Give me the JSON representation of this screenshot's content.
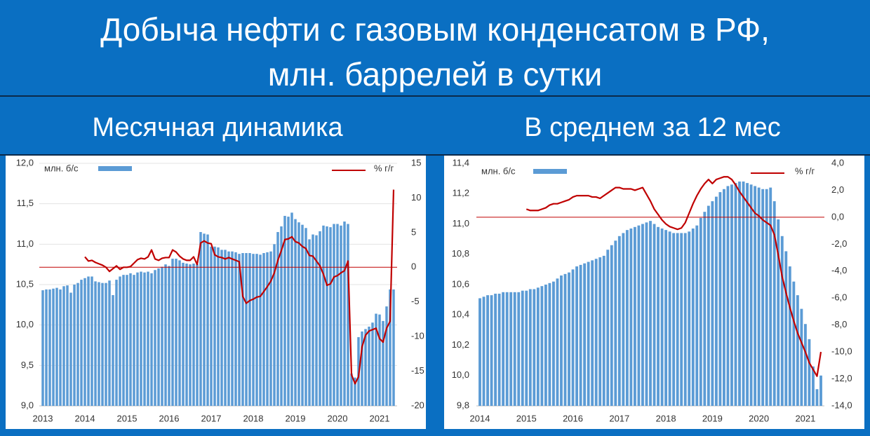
{
  "header": {
    "title_lines": [
      "Добыча нефти с газовым конденсатом в РФ,",
      "млн. баррелей в сутки"
    ]
  },
  "chart_data": [
    {
      "type": "bar",
      "title": "Месячная динамика",
      "grid": true,
      "zero_line": true,
      "categories": [
        "2013",
        null,
        null,
        null,
        null,
        null,
        null,
        null,
        null,
        null,
        null,
        null,
        "2014",
        null,
        null,
        null,
        null,
        null,
        null,
        null,
        null,
        null,
        null,
        null,
        "2015",
        null,
        null,
        null,
        null,
        null,
        null,
        null,
        null,
        null,
        null,
        null,
        "2016",
        null,
        null,
        null,
        null,
        null,
        null,
        null,
        null,
        null,
        null,
        null,
        "2017",
        null,
        null,
        null,
        null,
        null,
        null,
        null,
        null,
        null,
        null,
        null,
        "2018",
        null,
        null,
        null,
        null,
        null,
        null,
        null,
        null,
        null,
        null,
        null,
        "2019",
        null,
        null,
        null,
        null,
        null,
        null,
        null,
        null,
        null,
        null,
        null,
        "2020",
        null,
        null,
        null,
        null,
        null,
        null,
        null,
        null,
        null,
        null,
        null,
        "2021",
        null,
        null,
        null,
        null
      ],
      "ylim": [
        9,
        12
      ],
      "yticks": [
        {
          "value": 9,
          "label": "9,0"
        },
        {
          "value": 9.5,
          "label": "9,5"
        },
        {
          "value": 10,
          "label": "10,0"
        },
        {
          "value": 10.5,
          "label": "10,5"
        },
        {
          "value": 11,
          "label": "11,0"
        },
        {
          "value": 11.5,
          "label": "11,5"
        },
        {
          "value": 12,
          "label": "12,0"
        }
      ],
      "y2lim": [
        -20,
        15
      ],
      "y2ticks": [
        -20,
        -15,
        -10,
        -5,
        0,
        5,
        10,
        15
      ],
      "series": [
        {
          "name": "млн. б/с",
          "color": "#5b9bd5",
          "type": "bar",
          "values": [
            10.43,
            10.44,
            10.44,
            10.45,
            10.46,
            10.44,
            10.48,
            10.49,
            10.4,
            10.5,
            10.52,
            10.56,
            10.58,
            10.6,
            10.6,
            10.54,
            10.53,
            10.52,
            10.52,
            10.55,
            10.37,
            10.56,
            10.6,
            10.62,
            10.62,
            10.64,
            10.62,
            10.65,
            10.66,
            10.65,
            10.66,
            10.64,
            10.68,
            10.7,
            10.72,
            10.75,
            10.73,
            10.82,
            10.82,
            10.8,
            10.77,
            10.76,
            10.75,
            10.76,
            10.75,
            11.15,
            11.13,
            11.12,
            10.97,
            10.97,
            10.96,
            10.93,
            10.93,
            10.91,
            10.91,
            10.9,
            10.88,
            10.89,
            10.89,
            10.89,
            10.88,
            10.88,
            10.87,
            10.89,
            10.9,
            10.91,
            11.0,
            11.15,
            11.22,
            11.35,
            11.34,
            11.39,
            11.31,
            11.27,
            11.24,
            11.2,
            11.06,
            11.12,
            11.11,
            11.16,
            11.23,
            11.22,
            11.21,
            11.25,
            11.25,
            11.23,
            11.28,
            11.25,
            9.4,
            9.35,
            9.85,
            9.92,
            9.95,
            9.98,
            10.03,
            10.14,
            10.13,
            10.05,
            10.23,
            10.44,
            10.44
          ]
        },
        {
          "name": "% г/г",
          "color": "#c00000",
          "type": "line",
          "axis": "y2",
          "values": [
            null,
            null,
            null,
            null,
            null,
            null,
            null,
            null,
            null,
            null,
            null,
            null,
            1.5,
            0.9,
            1.0,
            0.7,
            0.5,
            0.3,
            0.0,
            -0.6,
            -0.2,
            0.2,
            -0.3,
            0.0,
            0.0,
            0.1,
            0.6,
            1.1,
            1.3,
            1.2,
            1.5,
            2.5,
            1.2,
            1.0,
            1.3,
            1.4,
            1.4,
            2.5,
            2.2,
            1.6,
            1.2,
            1.0,
            1.0,
            1.5,
            0.4,
            3.5,
            3.8,
            3.5,
            3.4,
            1.8,
            1.5,
            1.4,
            1.2,
            1.4,
            1.2,
            1.0,
            0.8,
            -4.2,
            -5.2,
            -4.8,
            -4.6,
            -4.3,
            -4.2,
            -3.5,
            -2.8,
            -2.0,
            -0.8,
            1.0,
            2.4,
            4.0,
            4.1,
            4.4,
            3.7,
            3.5,
            3.0,
            2.7,
            1.7,
            1.6,
            0.9,
            0.2,
            -1.0,
            -2.6,
            -2.4,
            -1.4,
            -1.2,
            -0.8,
            -0.5,
            0.9,
            -15.5,
            -16.8,
            -15.8,
            -11.5,
            -9.8,
            -9.2,
            -9.0,
            -8.8,
            -10.3,
            -10.8,
            -8.8,
            -7.8,
            11.2
          ]
        }
      ]
    },
    {
      "type": "bar",
      "title": "В среднем за 12 мес",
      "grid": false,
      "zero_line": true,
      "categories": [
        "2014",
        null,
        null,
        null,
        null,
        null,
        null,
        null,
        null,
        null,
        null,
        null,
        "2015",
        null,
        null,
        null,
        null,
        null,
        null,
        null,
        null,
        null,
        null,
        null,
        "2016",
        null,
        null,
        null,
        null,
        null,
        null,
        null,
        null,
        null,
        null,
        null,
        "2017",
        null,
        null,
        null,
        null,
        null,
        null,
        null,
        null,
        null,
        null,
        null,
        "2018",
        null,
        null,
        null,
        null,
        null,
        null,
        null,
        null,
        null,
        null,
        null,
        "2019",
        null,
        null,
        null,
        null,
        null,
        null,
        null,
        null,
        null,
        null,
        null,
        "2020",
        null,
        null,
        null,
        null,
        null,
        null,
        null,
        null,
        null,
        null,
        null,
        "2021",
        null,
        null,
        null,
        null
      ],
      "ylim": [
        9.8,
        11.4
      ],
      "yticks": [
        {
          "value": 9.8,
          "label": "9,8"
        },
        {
          "value": 10,
          "label": "10,0"
        },
        {
          "value": 10.2,
          "label": "10,2"
        },
        {
          "value": 10.4,
          "label": "10,4"
        },
        {
          "value": 10.6,
          "label": "10,6"
        },
        {
          "value": 10.8,
          "label": "10,8"
        },
        {
          "value": 11,
          "label": "11,0"
        },
        {
          "value": 11.2,
          "label": "11,2"
        },
        {
          "value": 11.4,
          "label": "11,4"
        }
      ],
      "y2lim": [
        -14,
        4
      ],
      "y2ticks": [
        {
          "value": -14,
          "label": "-14,0"
        },
        {
          "value": -12,
          "label": "-12,0"
        },
        {
          "value": -10,
          "label": "-10,0"
        },
        {
          "value": -8,
          "label": "-8,0"
        },
        {
          "value": -6,
          "label": "-6,0"
        },
        {
          "value": -4,
          "label": "-4,0"
        },
        {
          "value": -2,
          "label": "-2,0"
        },
        {
          "value": 0,
          "label": "0,0"
        },
        {
          "value": 2,
          "label": "2,0"
        },
        {
          "value": 4,
          "label": "4,0"
        }
      ],
      "series": [
        {
          "name": "млн. б/с",
          "color": "#5b9bd5",
          "type": "bar",
          "values": [
            10.51,
            10.52,
            10.53,
            10.53,
            10.54,
            10.54,
            10.55,
            10.55,
            10.55,
            10.55,
            10.55,
            10.56,
            10.56,
            10.57,
            10.57,
            10.58,
            10.59,
            10.6,
            10.61,
            10.62,
            10.64,
            10.66,
            10.67,
            10.68,
            10.7,
            10.72,
            10.73,
            10.74,
            10.75,
            10.76,
            10.77,
            10.78,
            10.79,
            10.83,
            10.86,
            10.89,
            10.92,
            10.94,
            10.96,
            10.97,
            10.98,
            10.99,
            11.0,
            11.01,
            11.02,
            11.0,
            10.98,
            10.97,
            10.96,
            10.95,
            10.94,
            10.94,
            10.94,
            10.94,
            10.95,
            10.97,
            10.99,
            11.04,
            11.08,
            11.12,
            11.15,
            11.18,
            11.21,
            11.23,
            11.25,
            11.26,
            11.27,
            11.28,
            11.28,
            11.27,
            11.26,
            11.25,
            11.24,
            11.23,
            11.23,
            11.24,
            11.15,
            11.03,
            10.92,
            10.82,
            10.72,
            10.62,
            10.53,
            10.44,
            10.34,
            10.24,
            10.06,
            9.91,
            10.0
          ]
        },
        {
          "name": "% г/г",
          "color": "#c00000",
          "type": "line",
          "axis": "y2",
          "values": [
            null,
            null,
            null,
            null,
            null,
            null,
            null,
            null,
            null,
            null,
            null,
            null,
            0.6,
            0.5,
            0.5,
            0.5,
            0.6,
            0.7,
            0.9,
            1.0,
            1.0,
            1.1,
            1.2,
            1.3,
            1.5,
            1.6,
            1.6,
            1.6,
            1.6,
            1.5,
            1.5,
            1.4,
            1.6,
            1.8,
            2.0,
            2.2,
            2.2,
            2.1,
            2.1,
            2.1,
            2.0,
            2.1,
            2.2,
            1.7,
            1.2,
            0.6,
            0.2,
            -0.2,
            -0.5,
            -0.7,
            -0.8,
            -0.9,
            -0.8,
            -0.4,
            0.3,
            1.0,
            1.6,
            2.1,
            2.5,
            2.8,
            2.5,
            2.8,
            2.9,
            3.0,
            3.0,
            2.8,
            2.4,
            1.9,
            1.5,
            1.1,
            0.7,
            0.3,
            0.1,
            -0.2,
            -0.4,
            -0.6,
            -1.3,
            -2.8,
            -4.4,
            -5.6,
            -6.7,
            -7.7,
            -8.6,
            -9.3,
            -10.0,
            -10.8,
            -11.3,
            -11.8,
            -10.0
          ]
        }
      ]
    }
  ]
}
